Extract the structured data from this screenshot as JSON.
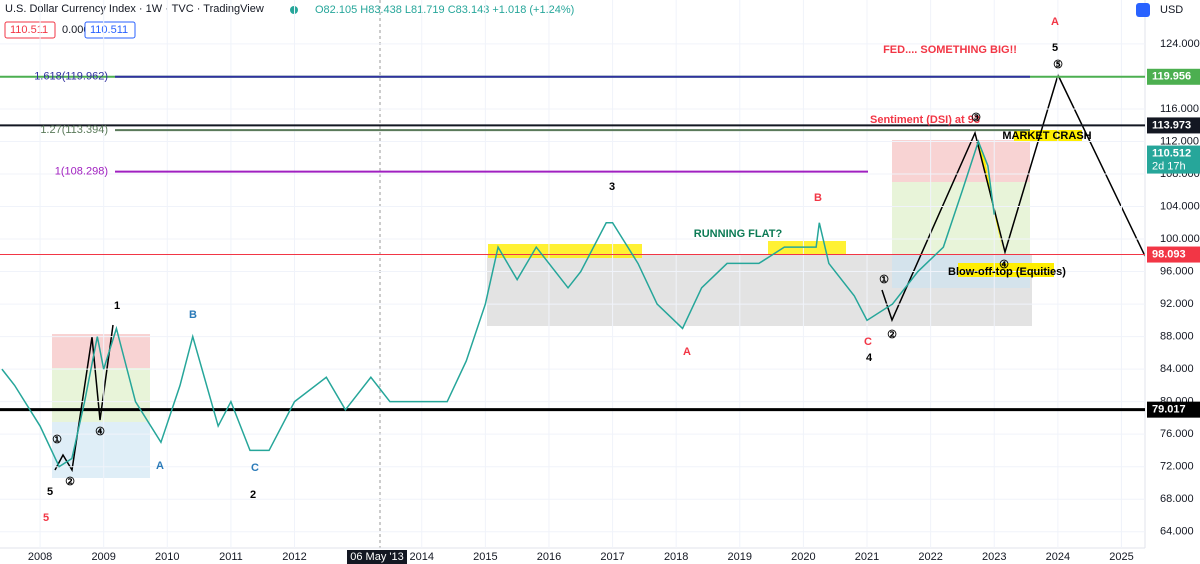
{
  "chart_data": {
    "type": "line",
    "title": "U.S. Dollar Currency Index · 1W · TVC · TradingView",
    "ohlc": "O82.105 H83.438 L81.719 C83.143 +1.018 (+1.24%)",
    "inputs": [
      "110.511",
      "0.000",
      "110.511"
    ],
    "currency": "USD",
    "countdown": "2d 17h",
    "crosshair_date": "06 May '13",
    "xlim": [
      2007.37,
      2025.37
    ],
    "xticks": [
      2008,
      2009,
      2010,
      2011,
      2012,
      2014,
      2015,
      2016,
      2017,
      2018,
      2019,
      2020,
      2021,
      2022,
      2023,
      2024,
      2025
    ],
    "ylim": [
      62,
      129.4
    ],
    "yticks": [
      {
        "value": 64,
        "label": "64.000"
      },
      {
        "value": 68,
        "label": "68.000"
      },
      {
        "value": 72,
        "label": "72.000"
      },
      {
        "value": 76,
        "label": "76.000"
      },
      {
        "value": 80,
        "label": "80.000"
      },
      {
        "value": 84,
        "label": "84.000"
      },
      {
        "value": 88,
        "label": "88.000"
      },
      {
        "value": 92,
        "label": "92.000"
      },
      {
        "value": 96,
        "label": "96.000"
      },
      {
        "value": 100,
        "label": "100.000"
      },
      {
        "value": 104,
        "label": "104.000"
      },
      {
        "value": 108,
        "label": "108.000"
      },
      {
        "value": 112,
        "label": "112.000"
      },
      {
        "value": 116,
        "label": "116.000"
      },
      {
        "value": 120,
        "label": "120.000"
      },
      {
        "value": 124,
        "label": "124.000"
      }
    ],
    "x": [
      2007.4,
      2007.6,
      2008.0,
      2008.3,
      2008.5,
      2008.7,
      2008.9,
      2009.0,
      2009.2,
      2009.5,
      2009.9,
      2010.2,
      2010.4,
      2010.8,
      2011.0,
      2011.3,
      2011.6,
      2012.0,
      2012.5,
      2012.8,
      2013.2,
      2013.5,
      2014.0,
      2014.4,
      2014.7,
      2015.0,
      2015.2,
      2015.5,
      2015.8,
      2016.3,
      2016.5,
      2016.9,
      2017.0,
      2017.4,
      2017.7,
      2018.1,
      2018.4,
      2018.8,
      2019.3,
      2019.7,
      2020.2,
      2020.25,
      2020.4,
      2020.8,
      2021.0,
      2021.4,
      2021.8,
      2022.2,
      2022.5,
      2022.75,
      2022.9,
      2023.0
    ],
    "series": [
      {
        "name": "DXY",
        "color": "#26a69a",
        "values": [
          84,
          82,
          77,
          72,
          73,
          80,
          88,
          84,
          89,
          80,
          75,
          82,
          88,
          77,
          80,
          74,
          74,
          80,
          83,
          79,
          83,
          80,
          80,
          80,
          85,
          92,
          99,
          95,
          99,
          94,
          96,
          102,
          102,
          97,
          92,
          89,
          94,
          97,
          97,
          99,
          99,
          102,
          97,
          93,
          90,
          92,
          96,
          99,
          106,
          112,
          109,
          103
        ]
      }
    ],
    "levels": [
      {
        "value": 119.962,
        "label": "1.618(119.962)",
        "color": "#3030a0"
      },
      {
        "value": 113.394,
        "label": "1.27(113.394)",
        "color": "#5a7a5a"
      },
      {
        "value": 108.298,
        "label": "1(108.298)",
        "color": "#a020c0"
      }
    ],
    "price_tags": [
      {
        "value": 119.956,
        "label": "119.956",
        "color": "#4caf50"
      },
      {
        "value": 113.973,
        "label": "113.973",
        "color": "#131722"
      },
      {
        "value": 110.512,
        "label": "110.512",
        "color": "#26a69a"
      },
      {
        "value": 98.093,
        "label": "98.093",
        "color": "#f23645"
      },
      {
        "value": 79.017,
        "label": "79.017",
        "color": "#000000"
      }
    ],
    "annotations": [
      "A",
      "5",
      "FED.... SOMETHING BIG!!",
      "Sentiment (DSI) at 93",
      "MARKET CRASH",
      "3",
      "RUNNING FLAT?",
      "B",
      "Blow-off-top (Equities)",
      "1",
      "B",
      "A",
      "C",
      "2",
      "5",
      "5",
      "4",
      "C",
      "A",
      "⑤",
      "③",
      "④",
      "①",
      "②",
      "①",
      "②",
      "④"
    ]
  }
}
